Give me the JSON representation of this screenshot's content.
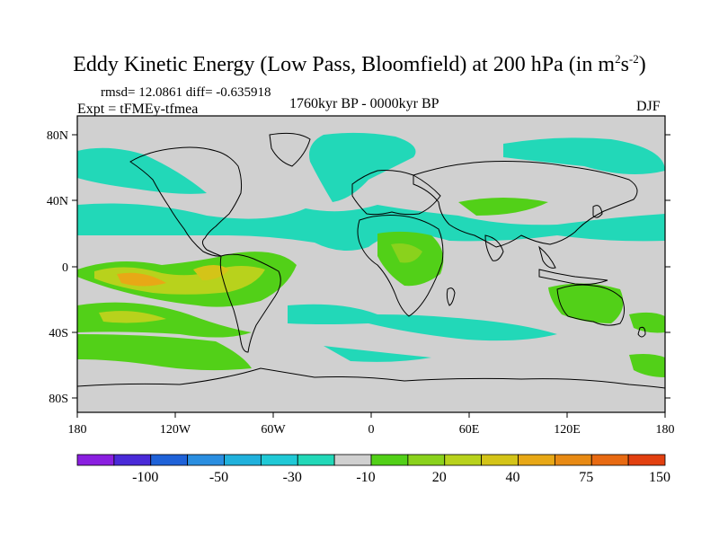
{
  "title": {
    "main": "Eddy Kinetic Energy (Low Pass, Bloomfield) at 200 hPa (in m",
    "sup1": "2",
    "mid": "s",
    "sup2": "-2",
    "end": ")"
  },
  "stats": {
    "rmsd_diff": "rmsd= 12.0861 diff= -0.635918",
    "expt": "Expt = tFMEy-tfmea",
    "period": "1760kyr BP - 0000kyr BP",
    "season": "DJF"
  },
  "axes": {
    "lat_labels": [
      "80N",
      "40N",
      "0",
      "40S",
      "80S"
    ],
    "lon_labels": [
      "180",
      "120W",
      "60W",
      "0",
      "60E",
      "120E",
      "180"
    ]
  },
  "colorbar": {
    "colors": [
      "#8a1fe0",
      "#4a2ad8",
      "#1f62d8",
      "#2a8ee0",
      "#20b1dc",
      "#20c9d6",
      "#22d8b8",
      "#d0d0d0",
      "#52d018",
      "#8ad21c",
      "#b8d21c",
      "#d4c418",
      "#e8a816",
      "#e88a14",
      "#e86a12",
      "#e24010"
    ],
    "labels": [
      "-100",
      "-50",
      "-30",
      "-10",
      "20",
      "40",
      "75",
      "150"
    ]
  },
  "colors": {
    "land_outline": "#000000",
    "background_zero": "#d0d0d0"
  }
}
